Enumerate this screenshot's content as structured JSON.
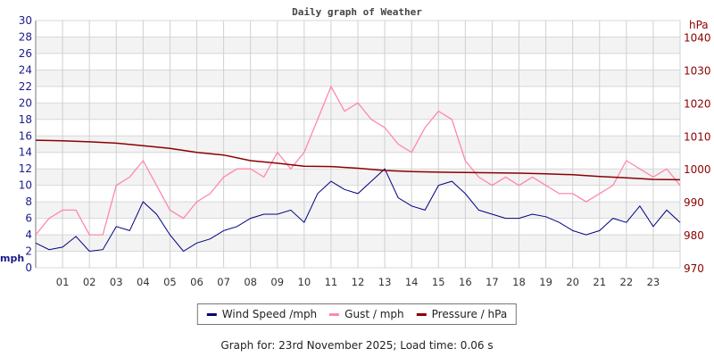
{
  "chart_data": {
    "type": "line",
    "title": "Daily graph of Weather",
    "left_axis": {
      "label": "mph",
      "ylim": [
        0,
        30
      ],
      "ticks": [
        0,
        2,
        4,
        6,
        8,
        10,
        12,
        14,
        16,
        18,
        20,
        22,
        24,
        26,
        28,
        30
      ],
      "color": "#1a1a8c"
    },
    "right_axis": {
      "label": "hPa",
      "ylim": [
        970,
        1045
      ],
      "ticks": [
        970,
        980,
        990,
        1000,
        1010,
        1020,
        1030,
        1040
      ],
      "color": "#8b0000"
    },
    "x_ticks": [
      "01",
      "02",
      "03",
      "04",
      "05",
      "06",
      "07",
      "08",
      "09",
      "10",
      "11",
      "12",
      "13",
      "14",
      "15",
      "16",
      "17",
      "18",
      "19",
      "20",
      "21",
      "22",
      "23"
    ],
    "xlim_hours": [
      0,
      24
    ],
    "grid": true,
    "legend_placement": "bottom",
    "series": [
      {
        "name": "Wind Speed /mph",
        "axis": "left",
        "color": "#000080",
        "x_hours_step": 0.5,
        "values": [
          3,
          2.2,
          2.5,
          3.8,
          2,
          2.2,
          5,
          4.5,
          8,
          6.5,
          4,
          2,
          3,
          3.5,
          4.5,
          5,
          6,
          6.5,
          6.5,
          7,
          5.5,
          9,
          10.5,
          9.5,
          9,
          10.5,
          12,
          8.5,
          7.5,
          7,
          10,
          10.5,
          9,
          7,
          6.5,
          6,
          6,
          6.5,
          6.2,
          5.5,
          4.5,
          4,
          4.5,
          6,
          5.5,
          7.5,
          5,
          7,
          5.5
        ]
      },
      {
        "name": "Gust / mph",
        "axis": "left",
        "color": "#ff88aa",
        "x_hours_step": 0.5,
        "values": [
          4,
          6,
          7,
          7,
          4,
          4,
          10,
          11,
          13,
          10,
          7,
          6,
          8,
          9,
          11,
          12,
          12,
          11,
          14,
          12,
          14,
          18,
          22,
          19,
          20,
          18,
          17,
          15,
          14,
          17,
          19,
          18,
          13,
          11,
          10,
          11,
          10,
          11,
          10,
          9,
          9,
          8,
          9,
          10,
          13,
          12,
          11,
          12,
          10
        ]
      },
      {
        "name": "Pressure / hPa",
        "axis": "right",
        "color": "#8b0000",
        "x_hours_step": 1,
        "values": [
          1008.7,
          1008.5,
          1008.2,
          1007.8,
          1007.0,
          1006.2,
          1005.0,
          1004.2,
          1002.5,
          1001.7,
          1000.8,
          1000.7,
          1000.2,
          999.5,
          999.2,
          999.0,
          998.9,
          998.8,
          998.7,
          998.5,
          998.2,
          997.7,
          997.3,
          996.8,
          996.7
        ]
      }
    ]
  },
  "footer": "Graph for: 23rd November 2025; Load time: 0.06 s"
}
